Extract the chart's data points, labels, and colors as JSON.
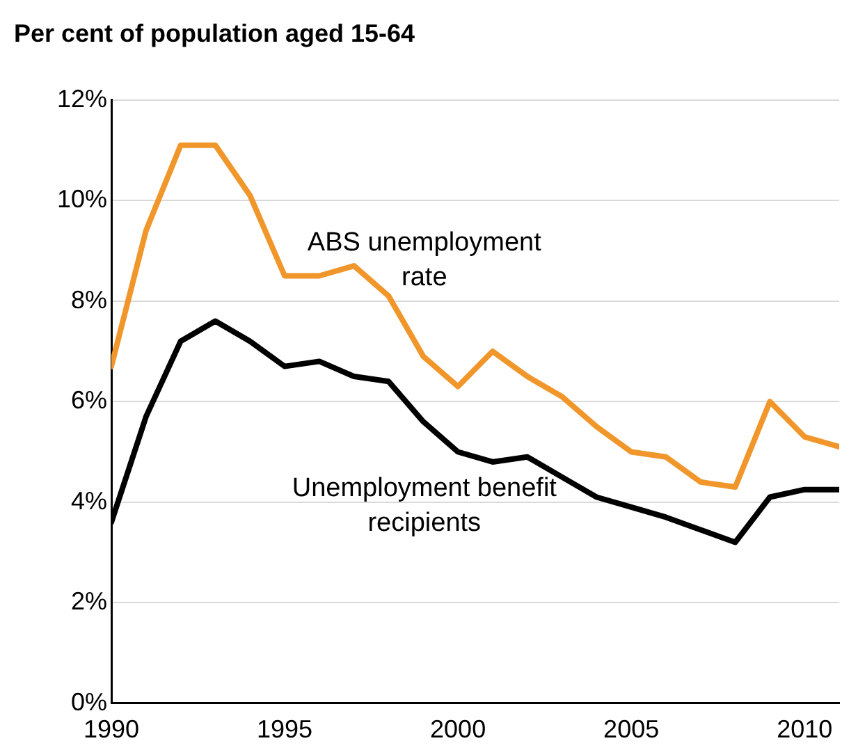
{
  "chart_data": {
    "type": "line",
    "ylabel": "Per cent of population aged 15-64",
    "x": [
      1990,
      1991,
      1992,
      1993,
      1994,
      1995,
      1996,
      1997,
      1998,
      1999,
      2000,
      2001,
      2002,
      2003,
      2004,
      2005,
      2006,
      2007,
      2008,
      2009,
      2010,
      2011
    ],
    "series": [
      {
        "name": "ABS unemployment rate",
        "color": "#f0962a",
        "values": [
          6.7,
          9.4,
          11.1,
          11.1,
          10.1,
          8.5,
          8.5,
          8.7,
          8.1,
          6.9,
          6.3,
          7.0,
          6.5,
          6.1,
          5.5,
          5.0,
          4.9,
          4.4,
          4.3,
          6.0,
          5.3,
          5.1
        ]
      },
      {
        "name": "Unemployment benefit recipients",
        "color": "#000000",
        "values": [
          3.6,
          5.7,
          7.2,
          7.6,
          7.2,
          6.7,
          6.8,
          6.5,
          6.4,
          5.6,
          5.0,
          4.8,
          4.9,
          4.5,
          4.1,
          3.9,
          3.7,
          3.45,
          3.2,
          4.1,
          4.25,
          4.25
        ]
      }
    ],
    "xlim": [
      1990,
      2011
    ],
    "xticks": [
      1990,
      1995,
      2000,
      2005,
      2010
    ],
    "ylim": [
      0,
      12
    ],
    "yticks": [
      {
        "value": 0,
        "label": "0%"
      },
      {
        "value": 2,
        "label": "2%"
      },
      {
        "value": 4,
        "label": "4%"
      },
      {
        "value": 6,
        "label": "6%"
      },
      {
        "value": 8,
        "label": "8%"
      },
      {
        "value": 10,
        "label": "10%"
      },
      {
        "value": 12,
        "label": "12%"
      }
    ],
    "grid": "y",
    "legend": false,
    "marker": "none",
    "line_style": "solid"
  }
}
